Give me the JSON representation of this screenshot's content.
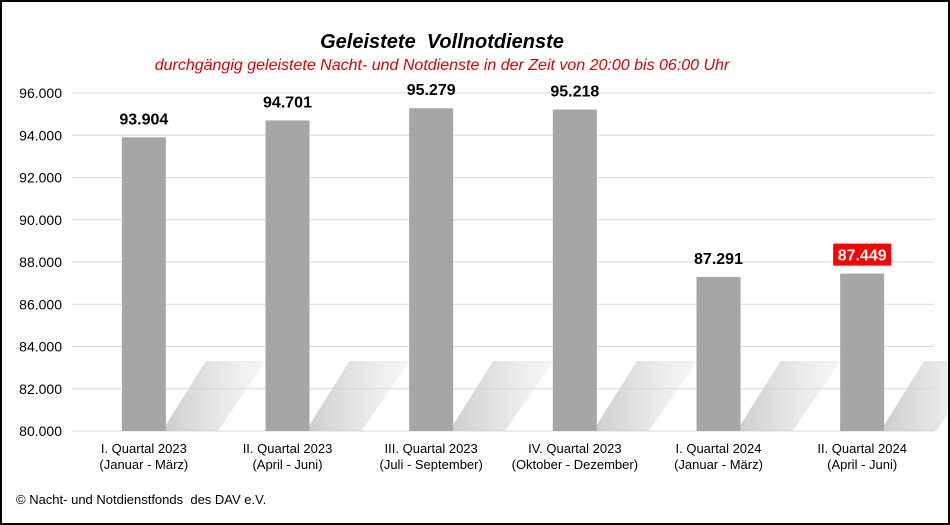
{
  "chart_data": {
    "type": "bar",
    "title": "Geleistete  Vollnotdienste",
    "subtitle": "durchgängig geleistete Nacht- und Notdienste in der Zeit von 20:00 bis 06:00 Uhr",
    "categories": [
      [
        "I. Quartal 2023",
        "(Januar - März)"
      ],
      [
        "II. Quartal 2023",
        "(April - Juni)"
      ],
      [
        "III. Quartal 2023",
        "(Juli - September)"
      ],
      [
        "IV. Quartal 2023",
        "(Oktober - Dezember)"
      ],
      [
        "I. Quartal 2024",
        "(Januar - März)"
      ],
      [
        "II. Quartal 2024",
        "(April - Juni)"
      ]
    ],
    "values": [
      93904,
      94701,
      95279,
      95218,
      87291,
      87449
    ],
    "value_labels": [
      "93.904",
      "94.701",
      "95.279",
      "95.218",
      "87.291",
      "87.449"
    ],
    "highlight_index": 5,
    "ylim": [
      80000,
      96000
    ],
    "yticks": [
      80000,
      82000,
      84000,
      86000,
      88000,
      90000,
      92000,
      94000,
      96000
    ],
    "ytick_labels": [
      "80.000",
      "82.000",
      "84.000",
      "86.000",
      "88.000",
      "90.000",
      "92.000",
      "94.000",
      "96.000"
    ],
    "xlabel": "",
    "ylabel": "",
    "grid": true,
    "legend": "none",
    "colors": {
      "bar": "#a6a6a6",
      "shadow": "#d9d9d9",
      "grid": "#d9d9d9",
      "highlight_bg": "#ff0000",
      "subtitle": "#e00000"
    }
  },
  "footer": "© Nacht- und Notdienstfonds  des DAV e.V."
}
